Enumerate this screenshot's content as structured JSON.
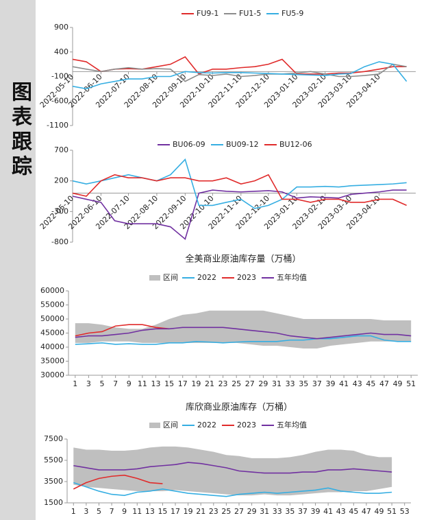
{
  "sidebar": {
    "title": "图表跟踪"
  },
  "chart_data": [
    {
      "type": "line",
      "x": [
        "2022-05-10",
        "2022-05-25",
        "2022-06-10",
        "2022-06-25",
        "2022-07-10",
        "2022-07-25",
        "2022-08-10",
        "2022-08-25",
        "2022-09-10",
        "2022-09-25",
        "2022-10-10",
        "2022-10-25",
        "2022-11-10",
        "2022-11-25",
        "2022-12-10",
        "2022-12-25",
        "2023-01-10",
        "2023-01-25",
        "2023-02-10",
        "2023-02-25",
        "2023-03-10",
        "2023-03-25",
        "2023-04-10",
        "2023-04-25",
        "2023-05-10"
      ],
      "xlim": [
        "2022-05-10",
        "2023-05-20"
      ],
      "xticks": [
        "2022-05-10",
        "2022-06-10",
        "2022-07-10",
        "2022-08-10",
        "2022-09-10",
        "2022-10-10",
        "2022-11-10",
        "2022-12-10",
        "2023-01-10",
        "2023-02-10",
        "2023-03-10",
        "2023-04-10"
      ],
      "ylim": [
        -1100,
        900
      ],
      "yticks": [
        900,
        400,
        -100,
        -600,
        -1100
      ],
      "series": [
        {
          "name": "FU9-1",
          "color": "#e02b2b",
          "values": [
            250,
            200,
            0,
            50,
            60,
            50,
            100,
            150,
            300,
            -50,
            50,
            50,
            80,
            100,
            150,
            250,
            -50,
            -50,
            -50,
            -30,
            -30,
            0,
            50,
            100,
            100
          ]
        },
        {
          "name": "FU1-5",
          "color": "#8c8c8c",
          "values": [
            100,
            50,
            0,
            50,
            80,
            50,
            60,
            50,
            -200,
            -60,
            -80,
            -50,
            -100,
            -80,
            -50,
            -50,
            -30,
            0,
            -50,
            -100,
            -100,
            -80,
            -50,
            150,
            100
          ]
        },
        {
          "name": "FU5-9",
          "color": "#35aee2",
          "values": [
            -300,
            -350,
            -250,
            -200,
            -150,
            -150,
            -100,
            -100,
            0,
            -20,
            -30,
            -20,
            -20,
            -30,
            -40,
            -50,
            -60,
            -70,
            -80,
            -50,
            -40,
            100,
            200,
            150,
            -200
          ]
        }
      ]
    },
    {
      "type": "line",
      "x": [
        "2022-05-10",
        "2022-05-25",
        "2022-06-10",
        "2022-06-25",
        "2022-07-10",
        "2022-07-25",
        "2022-08-10",
        "2022-08-25",
        "2022-09-10",
        "2022-09-25",
        "2022-10-10",
        "2022-10-25",
        "2022-11-10",
        "2022-11-25",
        "2022-12-10",
        "2022-12-25",
        "2023-01-10",
        "2023-01-25",
        "2023-02-10",
        "2023-02-25",
        "2023-03-10",
        "2023-03-25",
        "2023-04-10",
        "2023-04-25",
        "2023-05-10"
      ],
      "xlim": [
        "2022-05-10",
        "2023-05-20"
      ],
      "xticks": [
        "2022-05-10",
        "2022-06-10",
        "2022-07-10",
        "2022-08-10",
        "2022-09-10",
        "2022-10-10",
        "2022-11-10",
        "2022-12-10",
        "2023-01-10",
        "2023-02-10",
        "2023-03-10",
        "2023-04-10"
      ],
      "ylim": [
        -800,
        700
      ],
      "yticks": [
        700,
        200,
        -300,
        -800
      ],
      "series": [
        {
          "name": "BU06-09",
          "color": "#7030a0",
          "values": [
            -50,
            -100,
            -150,
            -450,
            -500,
            -500,
            -500,
            -550,
            -750,
            0,
            50,
            30,
            20,
            30,
            40,
            20,
            -80,
            -60,
            -70,
            -80,
            -20,
            0,
            20,
            50,
            50
          ]
        },
        {
          "name": "BU09-12",
          "color": "#35aee2",
          "values": [
            200,
            150,
            200,
            250,
            300,
            250,
            200,
            300,
            550,
            -200,
            -200,
            -150,
            -100,
            -250,
            -200,
            -100,
            100,
            100,
            110,
            100,
            120,
            130,
            140,
            150,
            170
          ]
        },
        {
          "name": "BU12-06",
          "color": "#e02b2b",
          "values": [
            0,
            -50,
            200,
            300,
            250,
            250,
            200,
            250,
            250,
            200,
            200,
            250,
            150,
            200,
            300,
            -100,
            -100,
            -150,
            -100,
            -100,
            -150,
            -150,
            -100,
            -100,
            -200
          ]
        }
      ]
    },
    {
      "type": "line",
      "title": "全美商业原油库存量（万桶）",
      "x": [
        1,
        3,
        5,
        7,
        9,
        11,
        13,
        15,
        17,
        19,
        21,
        23,
        25,
        27,
        29,
        31,
        33,
        35,
        37,
        39,
        41,
        43,
        45,
        47,
        49,
        51
      ],
      "xlim": [
        0,
        52
      ],
      "xticks": [
        1,
        3,
        5,
        7,
        9,
        11,
        13,
        15,
        17,
        19,
        21,
        23,
        25,
        27,
        29,
        31,
        33,
        35,
        37,
        39,
        41,
        43,
        45,
        47,
        49,
        51
      ],
      "ylim": [
        30000,
        60000
      ],
      "yticks": [
        60000,
        55000,
        50000,
        45000,
        40000,
        35000,
        30000
      ],
      "band": {
        "name": "区间",
        "color": "#bfbfbf",
        "high": [
          48500,
          48500,
          48000,
          47000,
          46500,
          46500,
          48000,
          50000,
          51500,
          52000,
          53000,
          53000,
          53000,
          53000,
          53000,
          52000,
          51000,
          50000,
          50000,
          50000,
          50000,
          50000,
          50000,
          49500,
          49500,
          49500
        ],
        "low": [
          41500,
          41500,
          42000,
          42000,
          42000,
          41500,
          41500,
          41500,
          41500,
          41500,
          41500,
          41500,
          41500,
          41000,
          40500,
          40500,
          40000,
          39500,
          39500,
          40500,
          41000,
          41500,
          42000,
          42000,
          42000,
          42000
        ]
      },
      "series": [
        {
          "name": "2022",
          "color": "#35aee2",
          "values": [
            41000,
            41200,
            41500,
            41000,
            41200,
            41000,
            41000,
            41500,
            41500,
            42000,
            41800,
            41500,
            41800,
            42000,
            42000,
            42000,
            42500,
            42500,
            43000,
            43000,
            43500,
            44000,
            44000,
            42500,
            42000,
            42000
          ]
        },
        {
          "name": "2023",
          "color": "#e02b2b",
          "values": [
            44000,
            45000,
            45500,
            47500,
            48000,
            48000,
            47000,
            46500,
            null,
            null,
            null,
            null,
            null,
            null,
            null,
            null,
            null,
            null,
            null,
            null,
            null,
            null,
            null,
            null,
            null,
            null
          ]
        },
        {
          "name": "五年均值",
          "color": "#7030a0",
          "values": [
            43500,
            44000,
            44000,
            44500,
            45000,
            46000,
            46500,
            46500,
            47000,
            47000,
            47000,
            47000,
            46500,
            46000,
            45500,
            45000,
            44000,
            43500,
            43000,
            43500,
            44000,
            44500,
            45000,
            44500,
            44500,
            44000
          ]
        }
      ]
    },
    {
      "type": "line",
      "title": "库欣商业原油库存（万桶）",
      "x": [
        1,
        3,
        5,
        7,
        9,
        11,
        13,
        15,
        17,
        19,
        21,
        23,
        25,
        27,
        29,
        31,
        33,
        35,
        37,
        39,
        41,
        43,
        45,
        47,
        49,
        51
      ],
      "xlim": [
        0,
        54
      ],
      "xticks": [
        1,
        3,
        5,
        7,
        9,
        11,
        13,
        15,
        17,
        19,
        21,
        23,
        25,
        27,
        29,
        31,
        33,
        35,
        37,
        39,
        41,
        43,
        45,
        47,
        49,
        51,
        53
      ],
      "ylim": [
        1500,
        7500
      ],
      "yticks": [
        7500,
        5500,
        3500,
        1500
      ],
      "band": {
        "name": "区间",
        "color": "#bfbfbf",
        "high": [
          6700,
          6500,
          6500,
          6400,
          6400,
          6500,
          6700,
          6800,
          6800,
          6700,
          6500,
          6300,
          6000,
          5900,
          5700,
          5700,
          5700,
          5800,
          6000,
          6300,
          6500,
          6500,
          6400,
          6000,
          5800,
          5800
        ],
        "low": [
          3200,
          3000,
          2900,
          2800,
          2700,
          2600,
          2600,
          2600,
          2700,
          2600,
          2500,
          2400,
          2300,
          2200,
          2200,
          2300,
          2200,
          2200,
          2300,
          2400,
          2500,
          2500,
          2600,
          2600,
          2800,
          3000
        ]
      },
      "series": [
        {
          "name": "2022",
          "color": "#35aee2",
          "values": [
            3400,
            3000,
            2600,
            2300,
            2200,
            2500,
            2600,
            2800,
            2600,
            2400,
            2300,
            2200,
            2100,
            2300,
            2400,
            2500,
            2400,
            2500,
            2600,
            2700,
            2900,
            2600,
            2500,
            2400,
            2400,
            2500
          ]
        },
        {
          "name": "2023",
          "color": "#e02b2b",
          "values": [
            2800,
            3400,
            3800,
            4000,
            4100,
            3800,
            3400,
            3300,
            null,
            null,
            null,
            null,
            null,
            null,
            null,
            null,
            null,
            null,
            null,
            null,
            null,
            null,
            null,
            null,
            null,
            null
          ]
        },
        {
          "name": "五年均值",
          "color": "#7030a0",
          "values": [
            5000,
            4800,
            4600,
            4600,
            4600,
            4700,
            4900,
            5000,
            5100,
            5300,
            5200,
            5000,
            4800,
            4500,
            4400,
            4300,
            4300,
            4300,
            4400,
            4400,
            4600,
            4600,
            4700,
            4600,
            4500,
            4400
          ]
        }
      ]
    }
  ]
}
